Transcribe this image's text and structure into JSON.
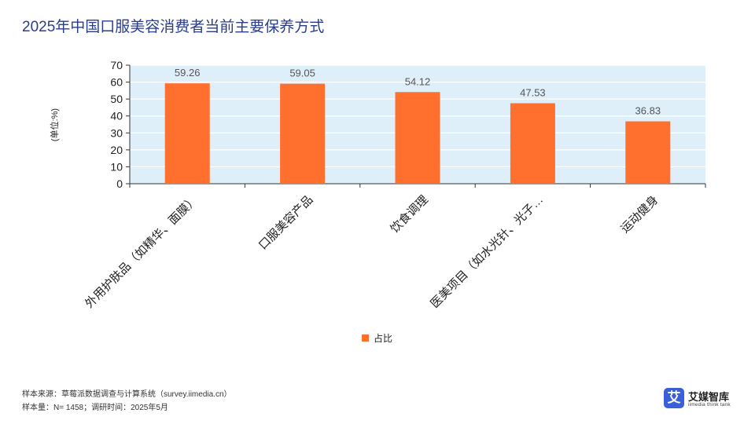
{
  "title": "2025年中国口服美容消费者当前主要保养方式",
  "chart_data": {
    "type": "bar",
    "categories": [
      "外用护肤品（如精华、面膜）",
      "口服美容产品",
      "饮食调理",
      "医美项目（如水光针、光子…",
      "运动健身"
    ],
    "series": [
      {
        "name": "占比",
        "values": [
          59.26,
          59.05,
          54.12,
          47.53,
          36.83
        ]
      }
    ],
    "data_labels": [
      "59.26",
      "59.05",
      "54.12",
      "47.53",
      "36.83"
    ],
    "ylabel": "(单位:%)",
    "ylim": [
      0,
      70
    ],
    "yticks": [
      0,
      10,
      20,
      30,
      40,
      50,
      60,
      70
    ],
    "grid": true,
    "legend_position": "bottom",
    "colors": {
      "bar": "#ff6f2d",
      "plot_bg": "#dfeffa",
      "grid": "#ffffff",
      "label": "#555555"
    }
  },
  "footer": {
    "source": "样本来源：草莓派数据调查与计算系统（survey.iimedia.cn）",
    "sample": "样本量：N= 1458；调研时间：2025年5月"
  },
  "logo": {
    "mark": "艾",
    "name": "艾媒智库",
    "sub": "iimedia think tank"
  }
}
